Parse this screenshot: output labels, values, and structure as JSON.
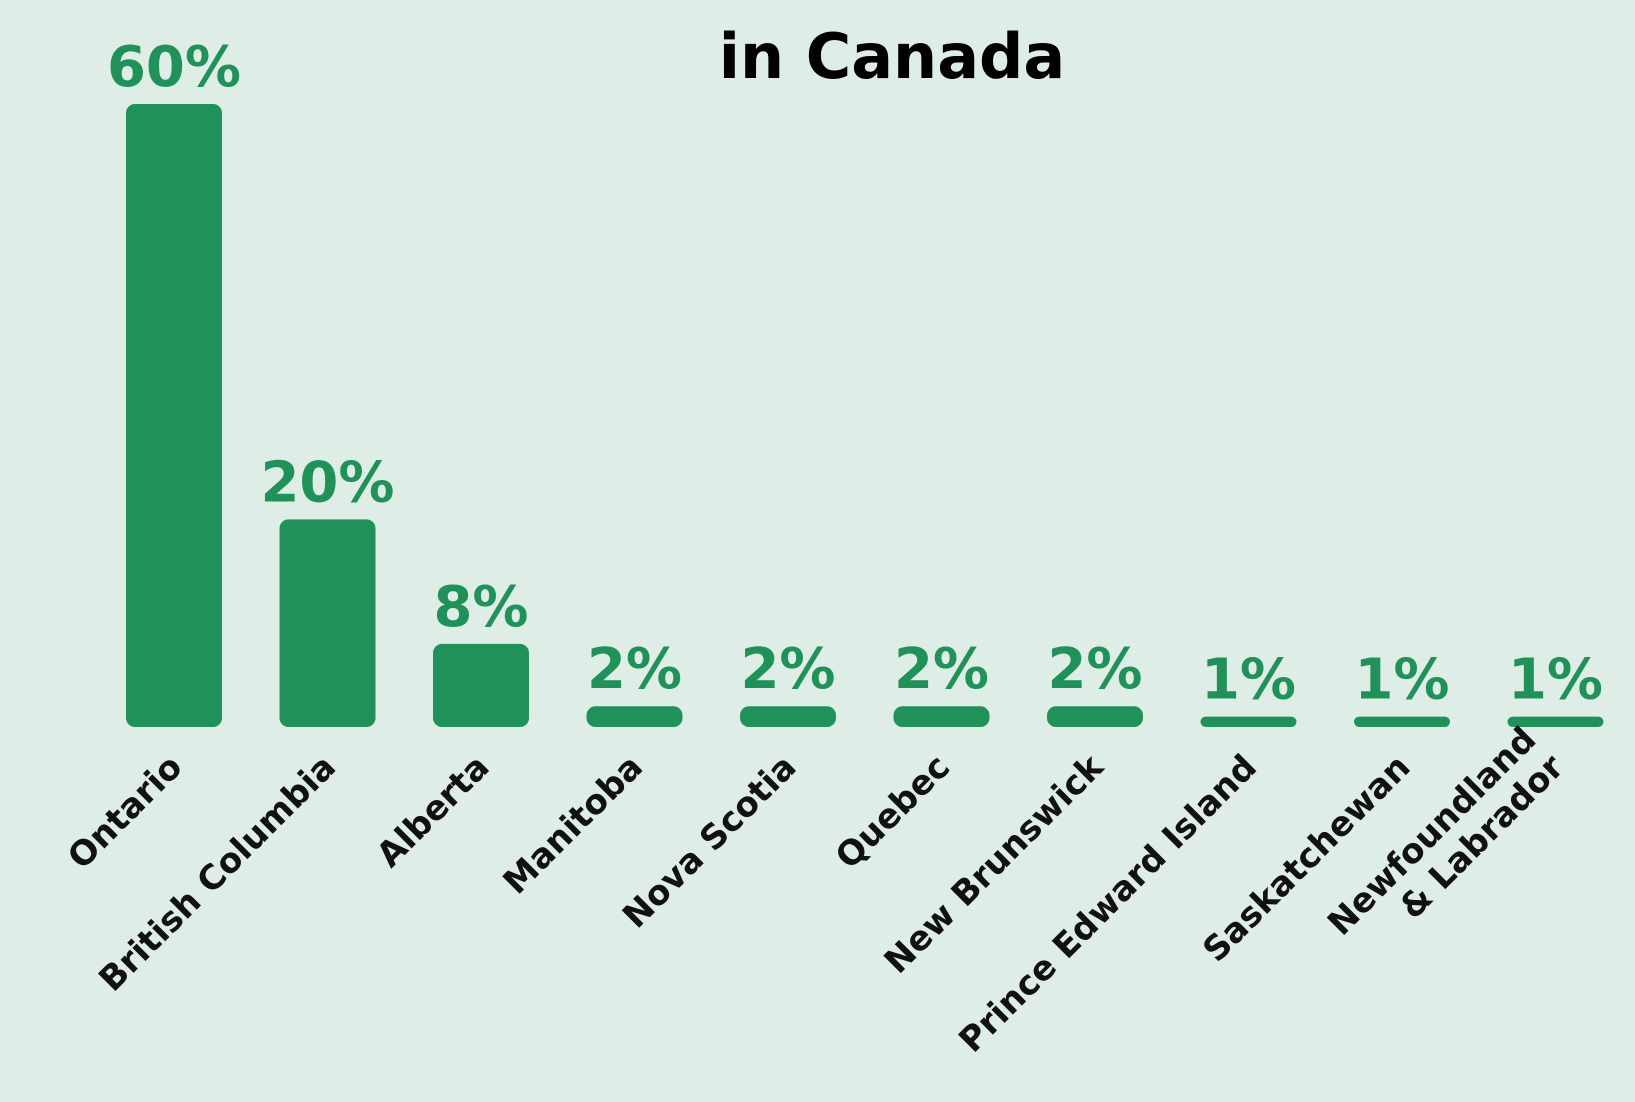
{
  "chart_data": {
    "type": "bar",
    "title": "in Canada",
    "categories": [
      "Ontario",
      "British Columbia",
      "Alberta",
      "Manitoba",
      "Nova Scotia",
      "Quebec",
      "New Brunswick",
      "Prince Edward Island",
      "Saskatchewan",
      "Newfoundland\n& Labrador"
    ],
    "values": [
      60,
      20,
      8,
      2,
      2,
      2,
      2,
      1,
      1,
      1
    ],
    "value_labels": [
      "60%",
      "20%",
      "8%",
      "2%",
      "2%",
      "2%",
      "2%",
      "1%",
      "1%",
      "1%"
    ],
    "color": "#21915a",
    "ylim": [
      0,
      60
    ]
  }
}
